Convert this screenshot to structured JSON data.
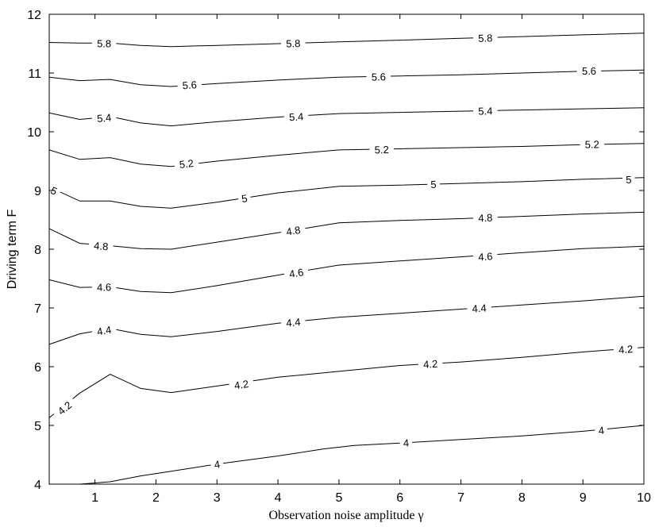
{
  "chart_data": {
    "type": "contour",
    "xlabel": "Observation noise amplitude γ",
    "ylabel": "Driving term F",
    "xlim": [
      0.25,
      10
    ],
    "ylim": [
      4,
      12
    ],
    "xticks": [
      "1",
      "2",
      "3",
      "4",
      "5",
      "6",
      "7",
      "8",
      "9",
      "10"
    ],
    "yticks": [
      "4",
      "5",
      "6",
      "7",
      "8",
      "9",
      "10",
      "11",
      "12"
    ],
    "grid": false,
    "contours": [
      {
        "level": "4",
        "points": [
          [
            0.75,
            4.0
          ],
          [
            1.25,
            4.04
          ],
          [
            1.75,
            4.14
          ],
          [
            2.25,
            4.22
          ],
          [
            3.0,
            4.34
          ],
          [
            4.0,
            4.48
          ],
          [
            4.75,
            4.6
          ],
          [
            5.25,
            4.66
          ],
          [
            6.0,
            4.7
          ],
          [
            7.0,
            4.76
          ],
          [
            8.0,
            4.82
          ],
          [
            9.0,
            4.9
          ],
          [
            10.0,
            5.0
          ]
        ],
        "labels": [
          [
            3.0,
            4.34
          ],
          [
            6.1,
            4.71
          ],
          [
            9.3,
            4.92
          ]
        ]
      },
      {
        "level": "4.2",
        "points": [
          [
            0.25,
            5.13
          ],
          [
            0.75,
            5.55
          ],
          [
            1.25,
            5.87
          ],
          [
            1.75,
            5.63
          ],
          [
            2.25,
            5.56
          ],
          [
            3.0,
            5.67
          ],
          [
            4.0,
            5.82
          ],
          [
            5.0,
            5.92
          ],
          [
            6.0,
            6.02
          ],
          [
            7.0,
            6.08
          ],
          [
            8.0,
            6.16
          ],
          [
            9.0,
            6.25
          ],
          [
            10.0,
            6.33
          ]
        ],
        "labels": [
          [
            0.5,
            5.3
          ],
          [
            3.4,
            5.7
          ],
          [
            6.5,
            6.05
          ],
          [
            9.7,
            6.3
          ]
        ]
      },
      {
        "level": "4.4",
        "points": [
          [
            0.25,
            6.38
          ],
          [
            0.75,
            6.56
          ],
          [
            1.25,
            6.65
          ],
          [
            1.75,
            6.55
          ],
          [
            2.25,
            6.51
          ],
          [
            3.0,
            6.6
          ],
          [
            4.0,
            6.74
          ],
          [
            5.0,
            6.84
          ],
          [
            6.0,
            6.91
          ],
          [
            7.0,
            6.98
          ],
          [
            8.0,
            7.05
          ],
          [
            9.0,
            7.12
          ],
          [
            10.0,
            7.2
          ]
        ],
        "labels": [
          [
            1.15,
            6.62
          ],
          [
            4.25,
            6.76
          ],
          [
            7.3,
            7.0
          ]
        ]
      },
      {
        "level": "4.6",
        "points": [
          [
            0.25,
            7.48
          ],
          [
            0.75,
            7.35
          ],
          [
            1.25,
            7.36
          ],
          [
            1.75,
            7.28
          ],
          [
            2.25,
            7.26
          ],
          [
            3.0,
            7.38
          ],
          [
            4.0,
            7.56
          ],
          [
            5.0,
            7.73
          ],
          [
            6.0,
            7.8
          ],
          [
            7.0,
            7.87
          ],
          [
            8.0,
            7.94
          ],
          [
            9.0,
            8.01
          ],
          [
            10.0,
            8.05
          ]
        ],
        "labels": [
          [
            1.15,
            7.36
          ],
          [
            4.3,
            7.6
          ],
          [
            7.4,
            7.88
          ]
        ]
      },
      {
        "level": "4.8",
        "points": [
          [
            0.25,
            8.35
          ],
          [
            0.75,
            8.1
          ],
          [
            1.25,
            8.06
          ],
          [
            1.75,
            8.01
          ],
          [
            2.25,
            8.0
          ],
          [
            3.0,
            8.12
          ],
          [
            4.0,
            8.28
          ],
          [
            5.0,
            8.45
          ],
          [
            6.0,
            8.49
          ],
          [
            7.0,
            8.52
          ],
          [
            8.0,
            8.56
          ],
          [
            9.0,
            8.6
          ],
          [
            10.0,
            8.63
          ]
        ],
        "labels": [
          [
            1.1,
            8.06
          ],
          [
            4.25,
            8.32
          ],
          [
            7.4,
            8.54
          ]
        ]
      },
      {
        "level": "5",
        "points": [
          [
            0.25,
            9.06
          ],
          [
            0.75,
            8.82
          ],
          [
            1.25,
            8.82
          ],
          [
            1.75,
            8.73
          ],
          [
            2.25,
            8.7
          ],
          [
            3.0,
            8.8
          ],
          [
            4.0,
            8.96
          ],
          [
            5.0,
            9.07
          ],
          [
            6.0,
            9.09
          ],
          [
            7.0,
            9.12
          ],
          [
            8.0,
            9.15
          ],
          [
            9.0,
            9.19
          ],
          [
            10.0,
            9.22
          ]
        ],
        "labels": [
          [
            0.33,
            9.0
          ],
          [
            3.45,
            8.87
          ],
          [
            6.55,
            9.11
          ],
          [
            9.75,
            9.19
          ]
        ]
      },
      {
        "level": "5.2",
        "points": [
          [
            0.25,
            9.69
          ],
          [
            0.75,
            9.53
          ],
          [
            1.25,
            9.56
          ],
          [
            1.75,
            9.45
          ],
          [
            2.25,
            9.41
          ],
          [
            3.0,
            9.5
          ],
          [
            4.0,
            9.6
          ],
          [
            5.0,
            9.69
          ],
          [
            6.0,
            9.71
          ],
          [
            7.0,
            9.73
          ],
          [
            8.0,
            9.75
          ],
          [
            9.0,
            9.78
          ],
          [
            10.0,
            9.8
          ]
        ],
        "labels": [
          [
            2.5,
            9.46
          ],
          [
            5.7,
            9.7
          ],
          [
            9.15,
            9.79
          ]
        ]
      },
      {
        "level": "5.4",
        "points": [
          [
            0.25,
            10.32
          ],
          [
            0.75,
            10.21
          ],
          [
            1.25,
            10.26
          ],
          [
            1.75,
            10.15
          ],
          [
            2.25,
            10.1
          ],
          [
            3.0,
            10.17
          ],
          [
            4.0,
            10.25
          ],
          [
            5.0,
            10.31
          ],
          [
            6.0,
            10.33
          ],
          [
            7.0,
            10.35
          ],
          [
            8.0,
            10.37
          ],
          [
            9.0,
            10.39
          ],
          [
            10.0,
            10.41
          ]
        ],
        "labels": [
          [
            1.15,
            10.24
          ],
          [
            4.3,
            10.26
          ],
          [
            7.4,
            10.36
          ]
        ]
      },
      {
        "level": "5.6",
        "points": [
          [
            0.25,
            10.93
          ],
          [
            0.75,
            10.87
          ],
          [
            1.25,
            10.89
          ],
          [
            1.75,
            10.8
          ],
          [
            2.25,
            10.77
          ],
          [
            3.0,
            10.82
          ],
          [
            4.0,
            10.88
          ],
          [
            5.0,
            10.93
          ],
          [
            6.0,
            10.95
          ],
          [
            7.0,
            10.97
          ],
          [
            8.0,
            11.0
          ],
          [
            9.0,
            11.03
          ],
          [
            10.0,
            11.05
          ]
        ],
        "labels": [
          [
            2.55,
            10.8
          ],
          [
            5.65,
            10.94
          ],
          [
            9.1,
            11.04
          ]
        ]
      },
      {
        "level": "5.8",
        "points": [
          [
            0.25,
            11.52
          ],
          [
            0.75,
            11.51
          ],
          [
            1.25,
            11.51
          ],
          [
            1.75,
            11.47
          ],
          [
            2.25,
            11.45
          ],
          [
            3.0,
            11.47
          ],
          [
            4.0,
            11.5
          ],
          [
            5.0,
            11.53
          ],
          [
            6.0,
            11.56
          ],
          [
            7.0,
            11.59
          ],
          [
            8.0,
            11.62
          ],
          [
            9.0,
            11.65
          ],
          [
            10.0,
            11.68
          ]
        ],
        "labels": [
          [
            1.15,
            11.51
          ],
          [
            4.25,
            11.51
          ],
          [
            7.4,
            11.6
          ]
        ]
      }
    ]
  }
}
